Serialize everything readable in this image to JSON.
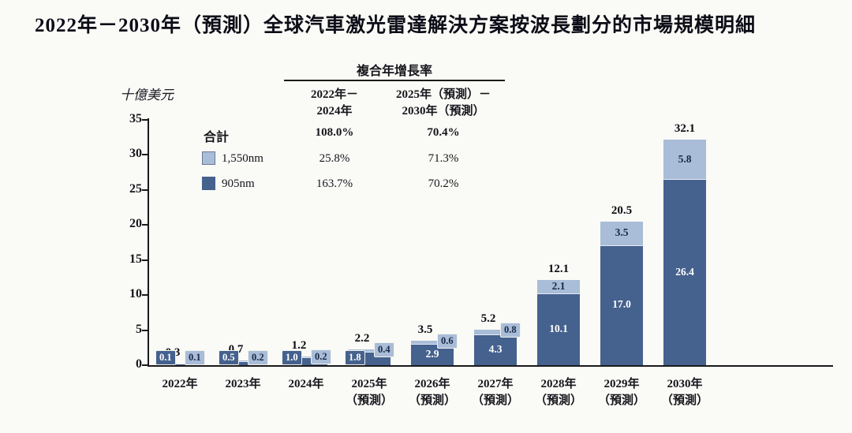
{
  "title": "2022年－2030年（預測）全球汽車激光雷達解決方案按波長劃分的市場規模明細",
  "y_axis_title": "十億美元",
  "cagr_table": {
    "title": "複合年增長率",
    "col1_header_line1": "2022年－",
    "col1_header_line2": "2024年",
    "col2_header_line1": "2025年（預測）－",
    "col2_header_line2": "2030年（預測）",
    "rows": [
      {
        "label": "合計",
        "col1": "108.0%",
        "col2": "70.4%"
      },
      {
        "label": "1,550nm",
        "col1": "25.8%",
        "col2": "71.3%"
      },
      {
        "label": "905nm",
        "col1": "163.7%",
        "col2": "70.2%"
      }
    ]
  },
  "colors": {
    "dark_blue_905nm": "#45618e",
    "light_blue_1550nm": "#a9bdd8",
    "axis": "#1a1a1a",
    "background": "#fafaf6"
  },
  "chart_data": {
    "type": "bar",
    "stacked": true,
    "title": "2022年－2030年（預測）全球汽車激光雷達解決方案按波長劃分的市場規模明細",
    "ylabel": "十億美元",
    "xlabel": "",
    "ylim": [
      0,
      35
    ],
    "yticks": [
      0,
      5,
      10,
      15,
      20,
      25,
      30,
      35
    ],
    "grid": false,
    "legend_position": "upper-left",
    "categories": [
      "2022年",
      "2023年",
      "2024年",
      "2025年（預測）",
      "2026年（預測）",
      "2027年（預測）",
      "2028年（預測）",
      "2029年（預測）",
      "2030年（預測）"
    ],
    "series": [
      {
        "name": "905nm",
        "color": "#45618e",
        "values": [
          0.1,
          0.5,
          1.0,
          1.8,
          2.9,
          4.3,
          10.1,
          17.0,
          26.4
        ],
        "labels": [
          "0.1",
          "0.5",
          "1.0",
          "1.8",
          "2.9",
          "4.3",
          "10.1",
          "17.0",
          "26.4"
        ]
      },
      {
        "name": "1,550nm",
        "color": "#a9bdd8",
        "values": [
          0.1,
          0.2,
          0.2,
          0.4,
          0.6,
          0.8,
          2.1,
          3.5,
          5.8
        ],
        "labels": [
          "0.1",
          "0.2",
          "0.2",
          "0.4",
          "0.6",
          "0.8",
          "2.1",
          "3.5",
          "5.8"
        ]
      }
    ],
    "totals": [
      0.3,
      0.7,
      1.2,
      2.2,
      3.5,
      5.2,
      12.1,
      20.5,
      32.1
    ],
    "total_labels": [
      "0.3",
      "0.7",
      "1.2",
      "2.2",
      "3.5",
      "5.2",
      "12.1",
      "20.5",
      "32.1"
    ]
  }
}
